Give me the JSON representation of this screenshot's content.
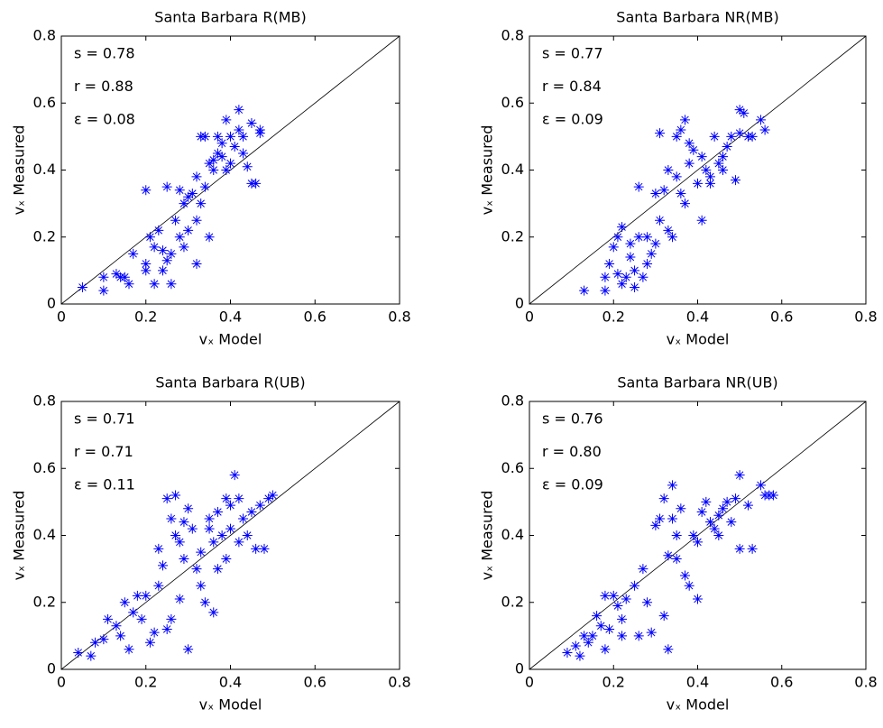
{
  "chart_data": [
    {
      "type": "scatter",
      "title": "Santa Barbara R(MB)",
      "xlabel": "vₓ Model",
      "ylabel": "vₓ Measured",
      "annotations": [
        "s = 0.78",
        "r = 0.88",
        "ε = 0.08"
      ],
      "color": "#0000ff",
      "marker": "*",
      "identity_line": true,
      "xlim": [
        0,
        0.8
      ],
      "ylim": [
        0,
        0.8
      ],
      "xticks": [
        0,
        0.2,
        0.4,
        0.6,
        0.8
      ],
      "yticks": [
        0,
        0.2,
        0.4,
        0.6,
        0.8
      ],
      "x": [
        0.05,
        0.1,
        0.1,
        0.13,
        0.14,
        0.15,
        0.16,
        0.17,
        0.2,
        0.2,
        0.2,
        0.21,
        0.22,
        0.22,
        0.23,
        0.24,
        0.24,
        0.25,
        0.25,
        0.26,
        0.26,
        0.27,
        0.28,
        0.28,
        0.29,
        0.29,
        0.3,
        0.3,
        0.31,
        0.32,
        0.32,
        0.32,
        0.33,
        0.33,
        0.34,
        0.34,
        0.35,
        0.35,
        0.36,
        0.36,
        0.37,
        0.37,
        0.38,
        0.38,
        0.39,
        0.39,
        0.4,
        0.4,
        0.41,
        0.42,
        0.42,
        0.43,
        0.43,
        0.44,
        0.45,
        0.46,
        0.47,
        0.47,
        0.45
      ],
      "values": [
        0.05,
        0.04,
        0.08,
        0.09,
        0.08,
        0.08,
        0.06,
        0.15,
        0.12,
        0.34,
        0.1,
        0.2,
        0.06,
        0.17,
        0.22,
        0.1,
        0.16,
        0.13,
        0.35,
        0.06,
        0.15,
        0.25,
        0.34,
        0.2,
        0.17,
        0.3,
        0.22,
        0.32,
        0.33,
        0.38,
        0.25,
        0.12,
        0.5,
        0.3,
        0.35,
        0.5,
        0.42,
        0.2,
        0.4,
        0.43,
        0.45,
        0.5,
        0.48,
        0.44,
        0.55,
        0.4,
        0.42,
        0.5,
        0.47,
        0.52,
        0.58,
        0.45,
        0.5,
        0.41,
        0.54,
        0.36,
        0.52,
        0.51,
        0.36
      ]
    },
    {
      "type": "scatter",
      "title": "Santa Barbara NR(MB)",
      "xlabel": "vₓ Model",
      "ylabel": "vₓ Measured",
      "annotations": [
        "s = 0.77",
        "r = 0.84",
        "ε = 0.09"
      ],
      "color": "#0000ff",
      "marker": "*",
      "identity_line": true,
      "xlim": [
        0,
        0.8
      ],
      "ylim": [
        0,
        0.8
      ],
      "xticks": [
        0,
        0.2,
        0.4,
        0.6,
        0.8
      ],
      "yticks": [
        0,
        0.2,
        0.4,
        0.6,
        0.8
      ],
      "x": [
        0.13,
        0.18,
        0.18,
        0.19,
        0.2,
        0.21,
        0.21,
        0.22,
        0.22,
        0.23,
        0.24,
        0.24,
        0.25,
        0.25,
        0.26,
        0.26,
        0.27,
        0.28,
        0.28,
        0.29,
        0.3,
        0.3,
        0.31,
        0.31,
        0.32,
        0.33,
        0.33,
        0.34,
        0.35,
        0.35,
        0.36,
        0.36,
        0.37,
        0.37,
        0.38,
        0.38,
        0.39,
        0.4,
        0.41,
        0.41,
        0.42,
        0.43,
        0.43,
        0.44,
        0.45,
        0.46,
        0.46,
        0.47,
        0.48,
        0.49,
        0.5,
        0.5,
        0.51,
        0.52,
        0.53,
        0.55,
        0.56
      ],
      "values": [
        0.04,
        0.04,
        0.08,
        0.12,
        0.17,
        0.2,
        0.09,
        0.23,
        0.06,
        0.08,
        0.14,
        0.18,
        0.1,
        0.05,
        0.2,
        0.35,
        0.08,
        0.2,
        0.12,
        0.15,
        0.18,
        0.33,
        0.51,
        0.25,
        0.34,
        0.22,
        0.4,
        0.2,
        0.38,
        0.5,
        0.33,
        0.52,
        0.3,
        0.55,
        0.48,
        0.42,
        0.46,
        0.36,
        0.25,
        0.44,
        0.4,
        0.38,
        0.36,
        0.5,
        0.42,
        0.4,
        0.44,
        0.47,
        0.5,
        0.37,
        0.51,
        0.58,
        0.57,
        0.5,
        0.5,
        0.55,
        0.52
      ]
    },
    {
      "type": "scatter",
      "title": "Santa Barbara R(UB)",
      "xlabel": "vₓ Model",
      "ylabel": "vₓ Measured",
      "annotations": [
        "s = 0.71",
        "r = 0.71",
        "ε = 0.11"
      ],
      "color": "#0000ff",
      "marker": "*",
      "identity_line": true,
      "xlim": [
        0,
        0.8
      ],
      "ylim": [
        0,
        0.8
      ],
      "xticks": [
        0,
        0.2,
        0.4,
        0.6,
        0.8
      ],
      "yticks": [
        0,
        0.2,
        0.4,
        0.6,
        0.8
      ],
      "x": [
        0.04,
        0.07,
        0.08,
        0.1,
        0.11,
        0.13,
        0.14,
        0.15,
        0.16,
        0.17,
        0.18,
        0.19,
        0.2,
        0.21,
        0.22,
        0.23,
        0.23,
        0.24,
        0.25,
        0.25,
        0.26,
        0.26,
        0.27,
        0.27,
        0.28,
        0.28,
        0.29,
        0.29,
        0.3,
        0.3,
        0.31,
        0.32,
        0.33,
        0.33,
        0.34,
        0.35,
        0.35,
        0.36,
        0.36,
        0.37,
        0.37,
        0.38,
        0.39,
        0.39,
        0.4,
        0.4,
        0.41,
        0.42,
        0.42,
        0.43,
        0.44,
        0.45,
        0.46,
        0.47,
        0.48,
        0.49,
        0.5
      ],
      "values": [
        0.05,
        0.04,
        0.08,
        0.09,
        0.15,
        0.13,
        0.1,
        0.2,
        0.06,
        0.17,
        0.22,
        0.15,
        0.22,
        0.08,
        0.11,
        0.25,
        0.36,
        0.31,
        0.12,
        0.51,
        0.45,
        0.15,
        0.52,
        0.4,
        0.38,
        0.21,
        0.44,
        0.33,
        0.06,
        0.48,
        0.42,
        0.3,
        0.25,
        0.35,
        0.2,
        0.42,
        0.45,
        0.17,
        0.38,
        0.3,
        0.47,
        0.4,
        0.51,
        0.33,
        0.42,
        0.49,
        0.58,
        0.38,
        0.51,
        0.45,
        0.4,
        0.47,
        0.36,
        0.49,
        0.36,
        0.51,
        0.52
      ]
    },
    {
      "type": "scatter",
      "title": "Santa Barbara NR(UB)",
      "xlabel": "vₓ Model",
      "ylabel": "vₓ Measured",
      "annotations": [
        "s = 0.76",
        "r = 0.80",
        "ε = 0.09"
      ],
      "color": "#0000ff",
      "marker": "*",
      "identity_line": true,
      "xlim": [
        0,
        0.8
      ],
      "ylim": [
        0,
        0.8
      ],
      "xticks": [
        0,
        0.2,
        0.4,
        0.6,
        0.8
      ],
      "yticks": [
        0,
        0.2,
        0.4,
        0.6,
        0.8
      ],
      "x": [
        0.09,
        0.11,
        0.12,
        0.13,
        0.14,
        0.15,
        0.16,
        0.17,
        0.18,
        0.18,
        0.19,
        0.2,
        0.21,
        0.22,
        0.22,
        0.23,
        0.25,
        0.26,
        0.27,
        0.28,
        0.29,
        0.3,
        0.31,
        0.32,
        0.32,
        0.33,
        0.33,
        0.34,
        0.34,
        0.35,
        0.35,
        0.36,
        0.37,
        0.38,
        0.39,
        0.4,
        0.4,
        0.41,
        0.42,
        0.43,
        0.44,
        0.45,
        0.45,
        0.46,
        0.47,
        0.48,
        0.49,
        0.5,
        0.5,
        0.52,
        0.53,
        0.55,
        0.56,
        0.57,
        0.58
      ],
      "values": [
        0.05,
        0.07,
        0.04,
        0.1,
        0.08,
        0.1,
        0.16,
        0.13,
        0.22,
        0.06,
        0.12,
        0.22,
        0.19,
        0.15,
        0.1,
        0.21,
        0.25,
        0.1,
        0.3,
        0.2,
        0.11,
        0.43,
        0.45,
        0.51,
        0.16,
        0.06,
        0.34,
        0.55,
        0.45,
        0.4,
        0.33,
        0.48,
        0.28,
        0.25,
        0.4,
        0.38,
        0.21,
        0.47,
        0.5,
        0.44,
        0.42,
        0.46,
        0.4,
        0.48,
        0.5,
        0.44,
        0.51,
        0.36,
        0.58,
        0.49,
        0.36,
        0.55,
        0.52,
        0.52,
        0.52
      ]
    }
  ]
}
